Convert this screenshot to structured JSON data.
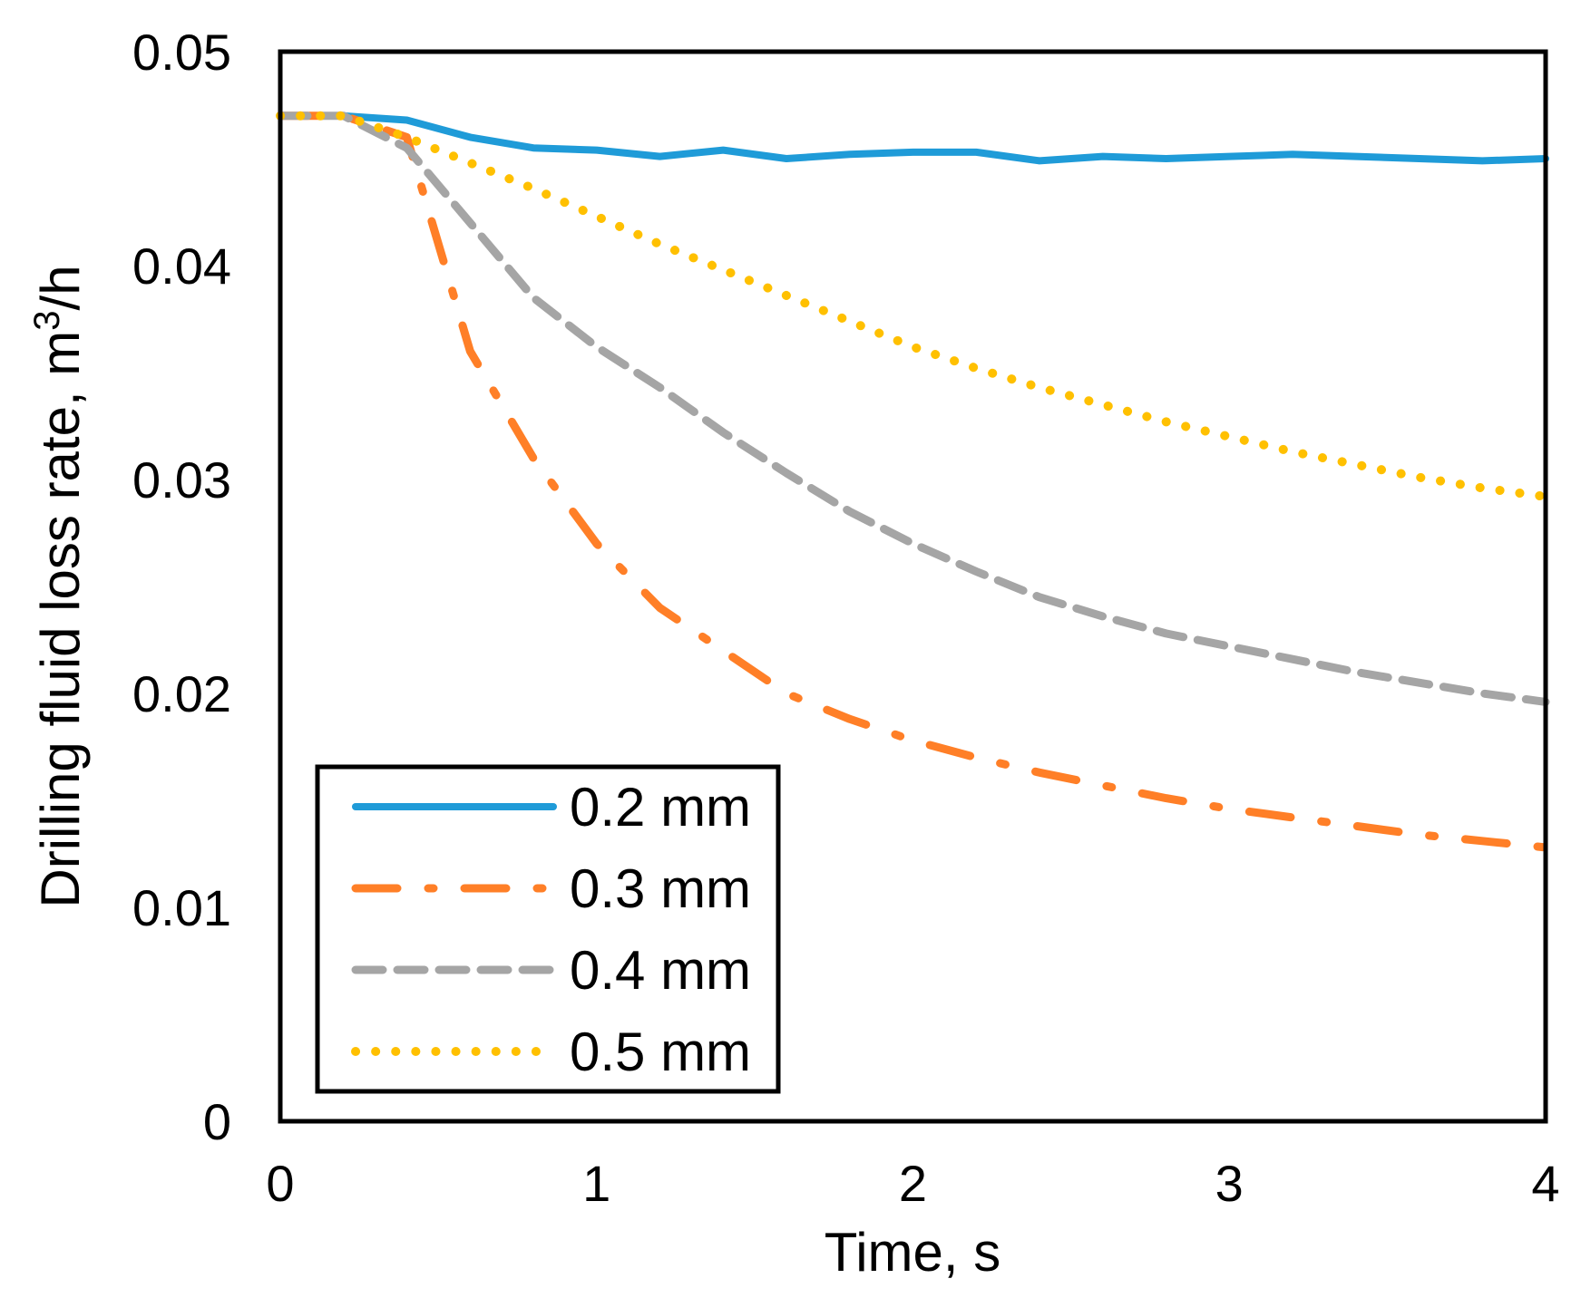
{
  "chart_data": {
    "type": "line",
    "title": "",
    "xlabel": "Time, s",
    "ylabel_main": "Drilling fluid loss rate, m",
    "ylabel_sup": "3",
    "ylabel_tail": "/h",
    "xlim": [
      0,
      4
    ],
    "ylim": [
      0,
      0.05
    ],
    "xticks": [
      "0",
      "1",
      "2",
      "3",
      "4"
    ],
    "yticks": [
      "0",
      "0.01",
      "0.02",
      "0.03",
      "0.04",
      "0.05"
    ],
    "grid": false,
    "legend_position": "bottom-left",
    "series": [
      {
        "name": "0.2 mm",
        "color": "#1f9bd8",
        "style": "solid",
        "x": [
          0,
          0.2,
          0.4,
          0.6,
          0.8,
          1.0,
          1.2,
          1.4,
          1.6,
          1.8,
          2.0,
          2.2,
          2.4,
          2.6,
          2.8,
          3.0,
          3.2,
          3.4,
          3.6,
          3.8,
          4.0
        ],
        "y": [
          0.047,
          0.047,
          0.0468,
          0.046,
          0.0455,
          0.0454,
          0.0451,
          0.0454,
          0.045,
          0.0452,
          0.0453,
          0.0453,
          0.0449,
          0.0451,
          0.045,
          0.0451,
          0.0452,
          0.0451,
          0.045,
          0.0449,
          0.045
        ]
      },
      {
        "name": "0.3 mm",
        "color": "#ff7f27",
        "style": "dashdot",
        "x": [
          0,
          0.2,
          0.4,
          0.5,
          0.6,
          0.8,
          1.0,
          1.2,
          1.4,
          1.6,
          1.8,
          2.0,
          2.2,
          2.4,
          2.6,
          2.8,
          3.0,
          3.2,
          3.4,
          3.6,
          3.8,
          4.0
        ],
        "y": [
          0.047,
          0.047,
          0.046,
          0.041,
          0.036,
          0.031,
          0.027,
          0.024,
          0.022,
          0.02,
          0.0188,
          0.0178,
          0.017,
          0.0163,
          0.0157,
          0.0151,
          0.0146,
          0.0142,
          0.0138,
          0.0134,
          0.0131,
          0.0128
        ]
      },
      {
        "name": "0.4 mm",
        "color": "#a5a5a5",
        "style": "dashed",
        "x": [
          0,
          0.2,
          0.4,
          0.6,
          0.8,
          1.0,
          1.2,
          1.4,
          1.6,
          1.8,
          2.0,
          2.2,
          2.4,
          2.6,
          2.8,
          3.0,
          3.2,
          3.4,
          3.6,
          3.8,
          4.0
        ],
        "y": [
          0.047,
          0.047,
          0.0455,
          0.042,
          0.0385,
          0.0362,
          0.0343,
          0.0322,
          0.0303,
          0.0285,
          0.027,
          0.0257,
          0.0245,
          0.0236,
          0.0228,
          0.0222,
          0.0216,
          0.021,
          0.0205,
          0.02,
          0.0196
        ]
      },
      {
        "name": "0.5 mm",
        "color": "#ffc000",
        "style": "dotted",
        "x": [
          0,
          0.2,
          0.4,
          0.6,
          0.8,
          1.0,
          1.2,
          1.4,
          1.6,
          1.8,
          2.0,
          2.2,
          2.4,
          2.6,
          2.8,
          3.0,
          3.2,
          3.4,
          3.6,
          3.8,
          4.0
        ],
        "y": [
          0.047,
          0.047,
          0.046,
          0.0448,
          0.0436,
          0.0423,
          0.041,
          0.0398,
          0.0386,
          0.0374,
          0.0362,
          0.0352,
          0.0343,
          0.0335,
          0.0327,
          0.032,
          0.0313,
          0.0307,
          0.0301,
          0.0296,
          0.0292
        ]
      }
    ]
  }
}
